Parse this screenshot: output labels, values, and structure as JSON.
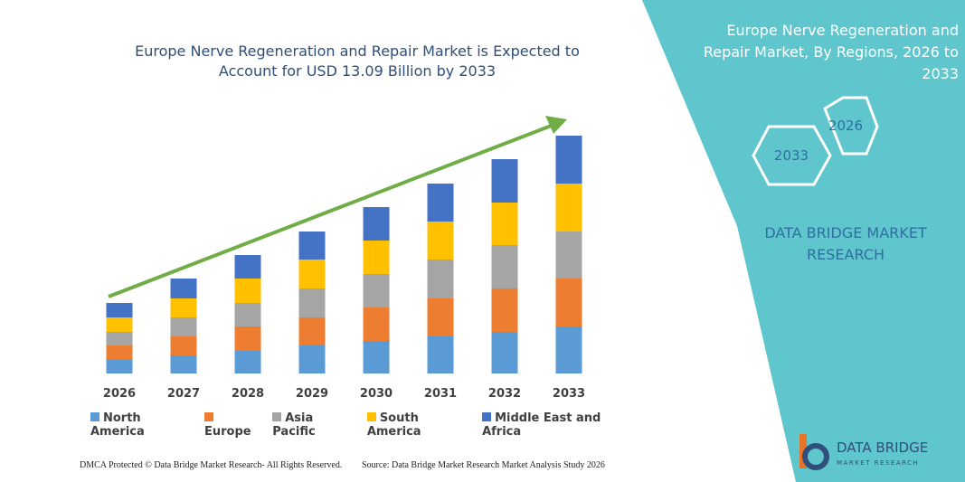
{
  "chart_data": {
    "type": "bar",
    "stacked": true,
    "title": "Europe Nerve Regeneration and Repair Market is Expected to Account for USD 13.09 Billion by 2033",
    "categories": [
      "2026",
      "2027",
      "2028",
      "2029",
      "2030",
      "2031",
      "2032",
      "2033"
    ],
    "series": [
      {
        "name": "North America",
        "color": "#5b9bd5",
        "values": [
          15,
          20,
          25,
          31,
          36,
          41,
          46,
          52
        ]
      },
      {
        "name": "Europe",
        "color": "#ed7d31",
        "values": [
          16,
          21,
          27,
          31,
          37,
          42,
          48,
          53
        ]
      },
      {
        "name": "Asia Pacific",
        "color": "#a5a5a5",
        "values": [
          15,
          21,
          26,
          32,
          37,
          43,
          48,
          52
        ]
      },
      {
        "name": "South America",
        "color": "#ffc000",
        "values": [
          16,
          21,
          27,
          32,
          37,
          42,
          47,
          53
        ]
      },
      {
        "name": "Middle East and Africa",
        "color": "#4472c4",
        "values": [
          16,
          22,
          26,
          31,
          37,
          42,
          48,
          53
        ]
      }
    ],
    "ylim": [
      0,
      270
    ],
    "legend": "bottom"
  },
  "panel": {
    "title": "Europe Nerve Regeneration and Repair Market, By Regions, 2026 to 2033",
    "hex_small": "2026",
    "hex_large": "2033",
    "brand": "DATA BRIDGE MARKET RESEARCH"
  },
  "footer": {
    "left": "DMCA Protected © Data Bridge Market Research- All Rights Reserved.",
    "right": "Source: Data Bridge Market Research Market Analysis Study 2026"
  },
  "logo": {
    "name": "DATA BRIDGE",
    "tagline": "MARKET RESEARCH"
  }
}
